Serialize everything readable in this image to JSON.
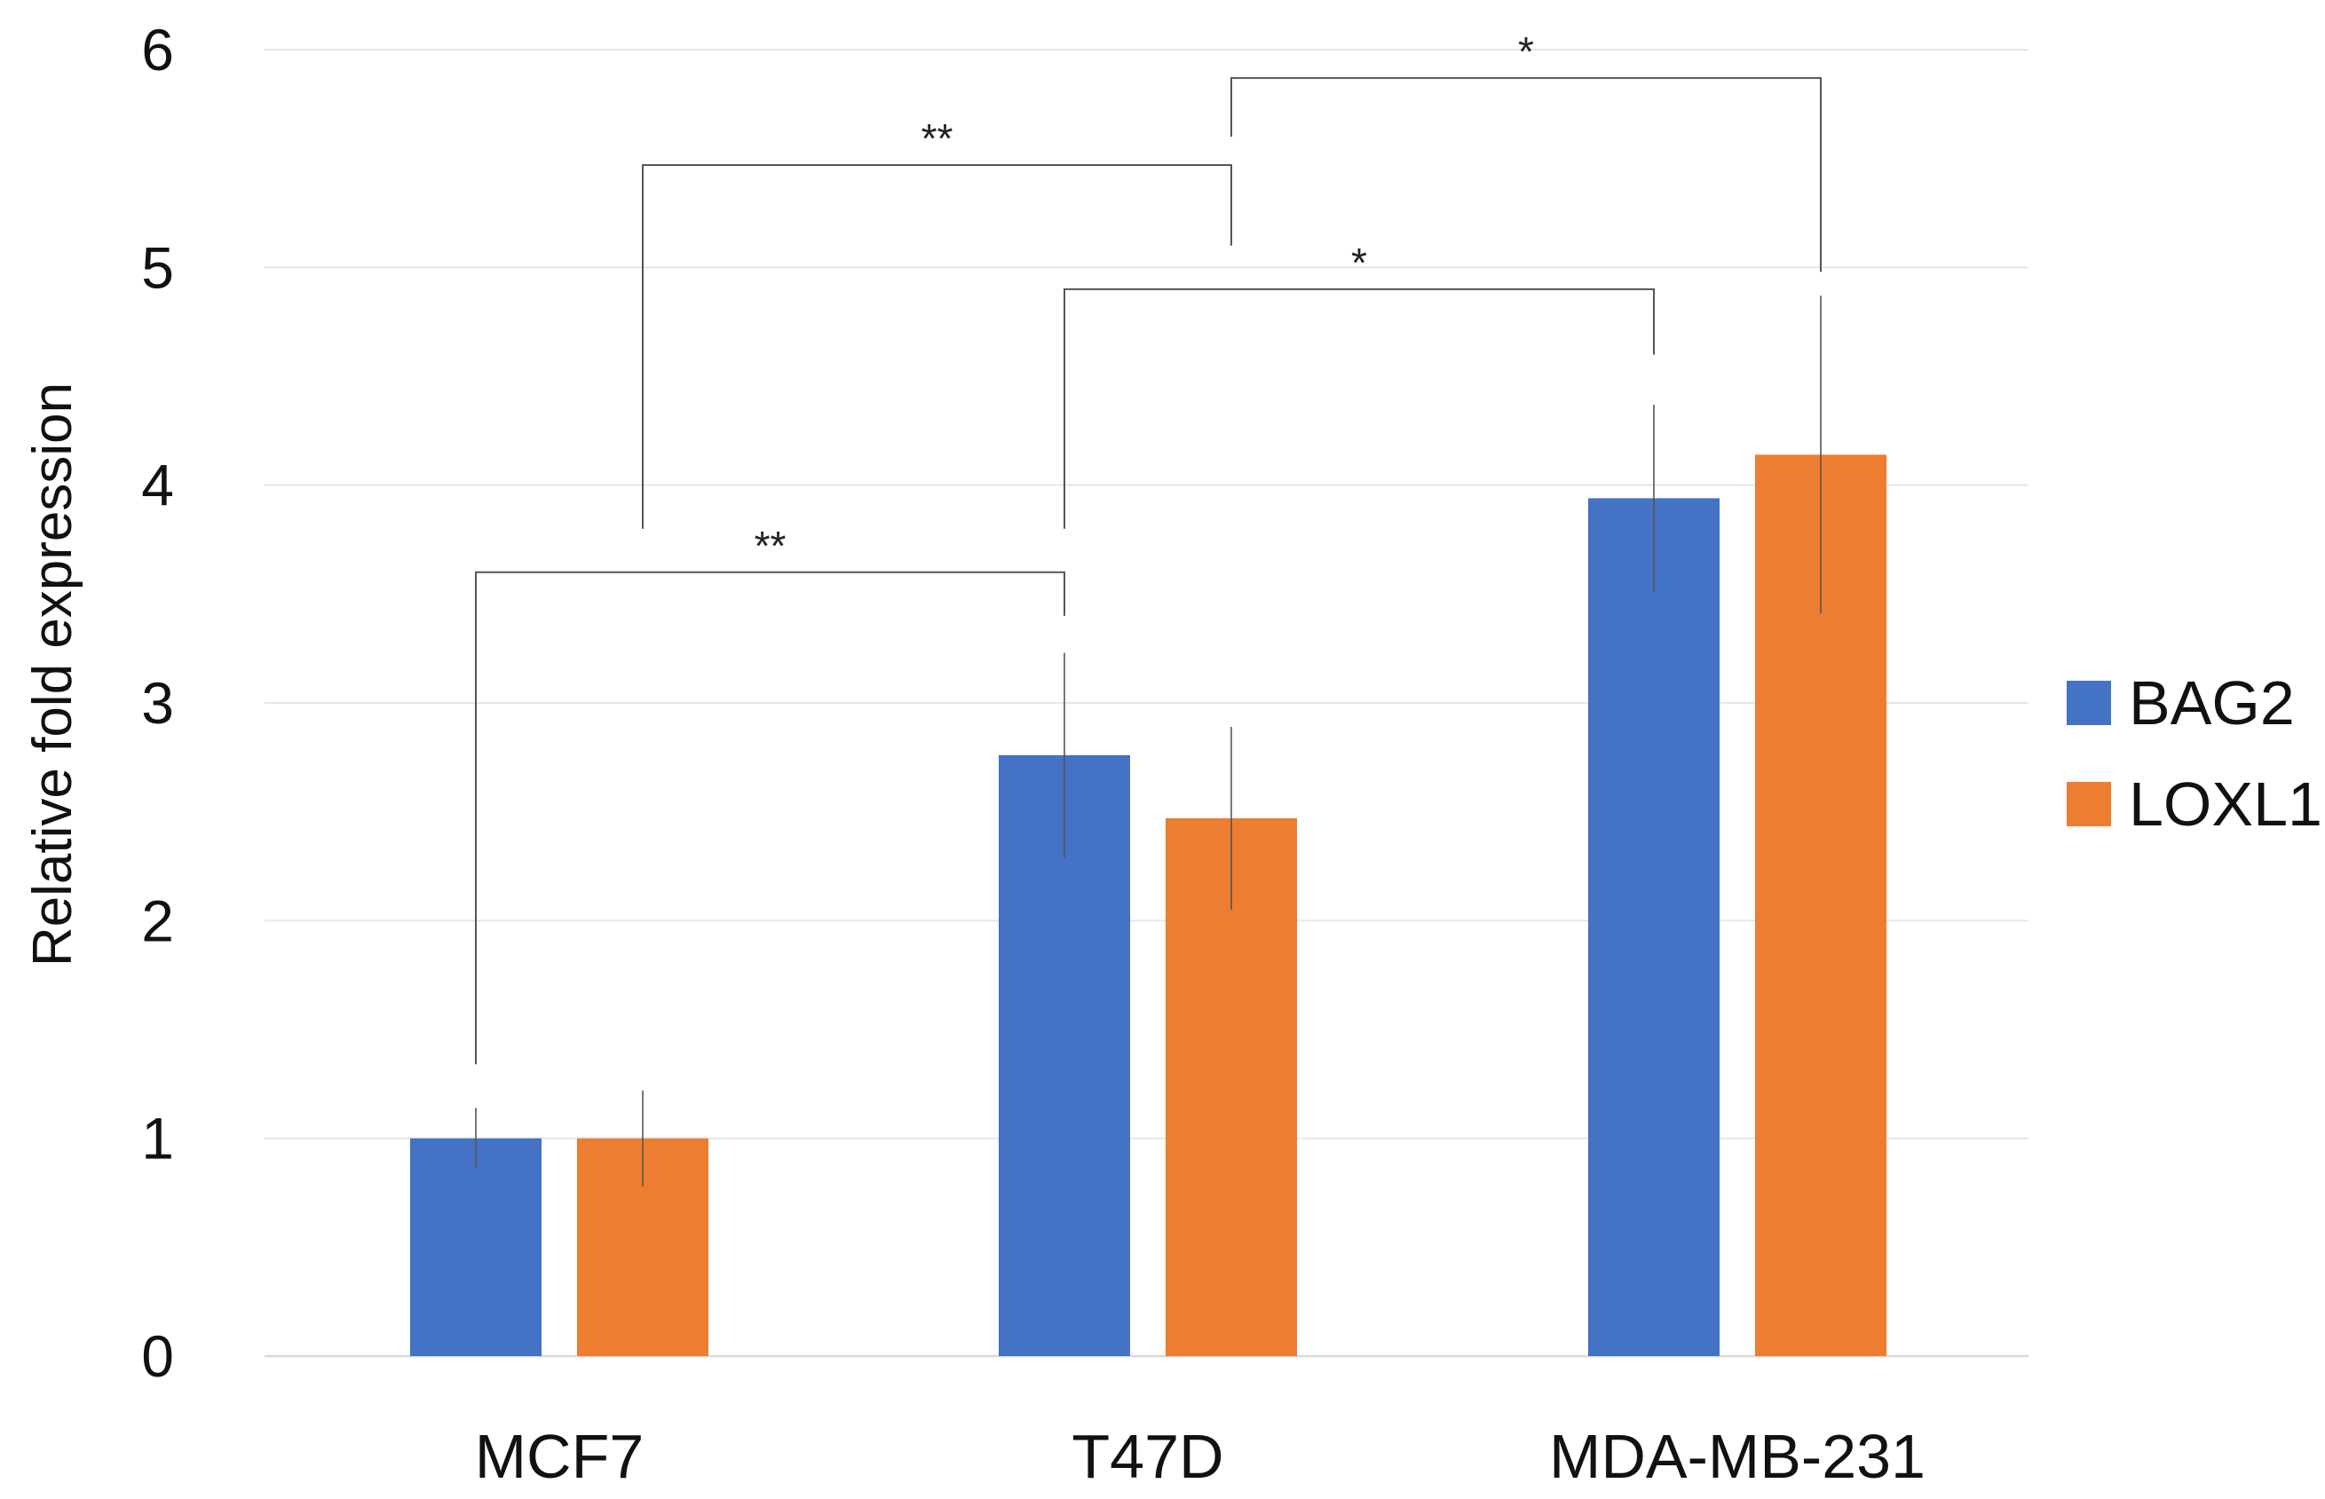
{
  "chart_data": {
    "type": "bar",
    "title": "",
    "xlabel": "",
    "ylabel": "Relative fold expression",
    "ylim": [
      0,
      6
    ],
    "yticks": [
      "0",
      "1",
      "2",
      "3",
      "4",
      "5",
      "6"
    ],
    "grid": true,
    "legend_position": "right",
    "categories": [
      "MCF7",
      "T47D",
      "MDA-MB-231"
    ],
    "series": [
      {
        "name": "BAG2",
        "color": "#4472C4",
        "values": [
          1.0,
          2.76,
          3.94
        ],
        "errors": [
          0.14,
          0.47,
          0.43
        ]
      },
      {
        "name": "LOXL1",
        "color": "#ED7D31",
        "values": [
          1.0,
          2.47,
          4.14
        ],
        "errors": [
          0.22,
          0.42,
          0.73
        ]
      }
    ],
    "significance": [
      {
        "label": "**",
        "from_category": 0,
        "to_category": 1,
        "level": 3.6,
        "from_end": 1.34,
        "to_end": 3.4
      },
      {
        "label": "**",
        "from_category": 0,
        "to_category": 1,
        "level": 5.47,
        "from_end": 3.8,
        "to_end": 5.1,
        "from_offset": 1,
        "to_offset": 1.0
      },
      {
        "label": "*",
        "from_category": 1,
        "to_category": 2,
        "level": 4.9,
        "from_end": 3.8,
        "to_end": 4.6
      },
      {
        "label": "*",
        "from_category": 1,
        "to_category": 2,
        "level": 5.87,
        "from_end": 5.6,
        "to_end": 4.98
      }
    ]
  }
}
